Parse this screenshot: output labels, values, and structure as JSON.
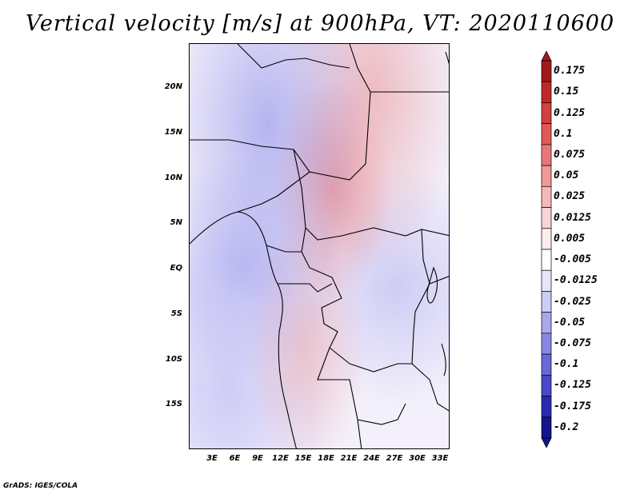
{
  "title": "Vertical velocity [m/s] at 900hPa, VT: 2020110600",
  "credit": "GrADS: IGES/COLA",
  "lat_labels": [
    "20N",
    "15N",
    "10N",
    "5N",
    "EQ",
    "5S",
    "10S",
    "15S"
  ],
  "lat_values": [
    20,
    15,
    10,
    5,
    0,
    -5,
    -10,
    -15
  ],
  "lon_labels": [
    "3E",
    "6E",
    "9E",
    "12E",
    "15E",
    "18E",
    "21E",
    "24E",
    "27E",
    "30E",
    "33E"
  ],
  "lon_values": [
    3,
    6,
    9,
    12,
    15,
    18,
    21,
    24,
    27,
    30,
    33
  ],
  "colorbar": {
    "labels": [
      "0.175",
      "0.15",
      "0.125",
      "0.1",
      "0.075",
      "0.05",
      "0.025",
      "0.0125",
      "0.005",
      "-0.005",
      "-0.0125",
      "-0.025",
      "-0.05",
      "-0.075",
      "-0.1",
      "-0.125",
      "-0.175",
      "-0.2"
    ],
    "colors": [
      "#a01a1a",
      "#c02828",
      "#d44040",
      "#e05858",
      "#e87878",
      "#f09898",
      "#f5b8b8",
      "#f9d4d4",
      "#fcecec",
      "#ffffff",
      "#e6e6fa",
      "#ccccf5",
      "#a8a8ee",
      "#8888e4",
      "#6868d8",
      "#4848c8",
      "#2a2ab0",
      "#14148c"
    ]
  }
}
